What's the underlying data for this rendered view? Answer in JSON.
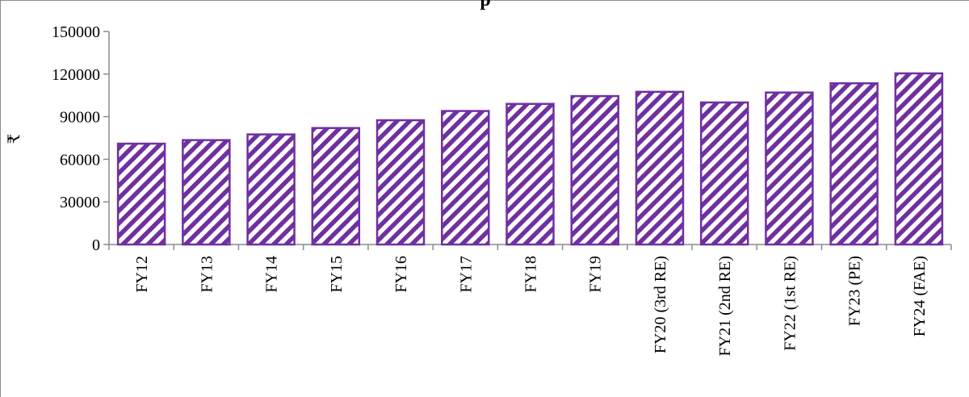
{
  "chart_data": {
    "type": "bar",
    "title": "p",
    "xlabel": "",
    "ylabel": "₹",
    "categories": [
      "FY12",
      "FY13",
      "FY14",
      "FY15",
      "FY16",
      "FY17",
      "FY18",
      "FY19",
      "FY20 (3rd RE)",
      "FY21 (2nd RE)",
      "FY22 (1st RE)",
      "FY23 (PE)",
      "FY24 (FAE)"
    ],
    "values": [
      71000,
      73500,
      77500,
      82000,
      87500,
      94000,
      99000,
      104500,
      107500,
      100000,
      107000,
      113500,
      120500
    ],
    "ylim": [
      0,
      150000
    ],
    "yticks": [
      0,
      30000,
      60000,
      90000,
      120000,
      150000
    ],
    "grid": false,
    "legend": "none",
    "colors": {
      "bar_stroke": "#7030a0",
      "bar_hatch": "#7030a0",
      "axis": "#8c8c8c"
    }
  }
}
